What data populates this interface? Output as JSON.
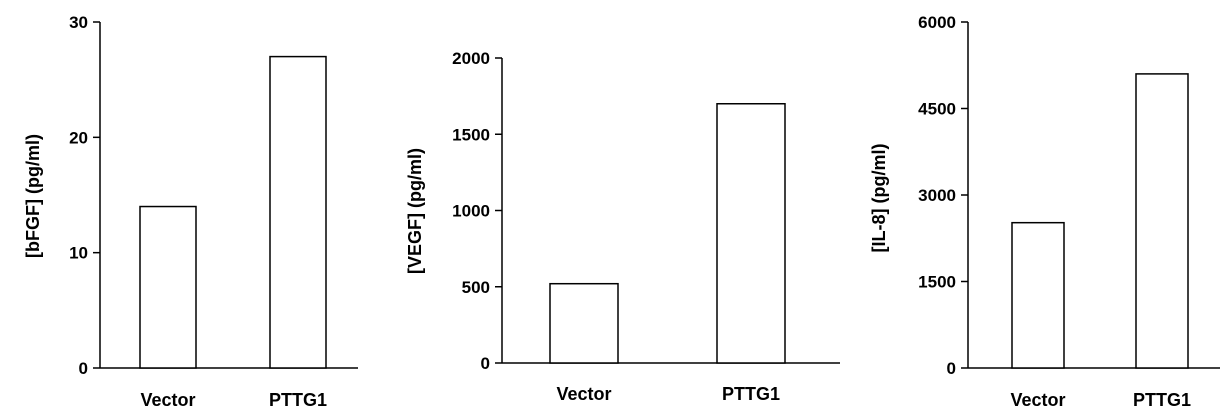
{
  "chart_data": [
    {
      "type": "bar",
      "title": "",
      "xlabel": "",
      "ylabel": "[bFGF] (pg/ml)",
      "categories": [
        "Vector",
        "PTTG1"
      ],
      "values": [
        14,
        27
      ],
      "ylim": [
        0,
        30
      ],
      "yticks": [
        "0",
        "10",
        "20",
        "30"
      ],
      "grid": false,
      "legend": "none"
    },
    {
      "type": "bar",
      "title": "",
      "xlabel": "",
      "ylabel": "[VEGF] (pg/ml)",
      "categories": [
        "Vector",
        "PTTG1"
      ],
      "values": [
        520,
        1700
      ],
      "ylim": [
        0,
        2000
      ],
      "yticks": [
        "0",
        "500",
        "1000",
        "1500",
        "2000"
      ],
      "grid": false,
      "legend": "none"
    },
    {
      "type": "bar",
      "title": "",
      "xlabel": "",
      "ylabel": "[IL-8] (pg/ml)",
      "categories": [
        "Vector",
        "PTTG1"
      ],
      "values": [
        2520,
        5100
      ],
      "ylim": [
        0,
        6000
      ],
      "yticks": [
        "0",
        "1500",
        "3000",
        "4500",
        "6000"
      ],
      "grid": false,
      "legend": "none"
    }
  ]
}
